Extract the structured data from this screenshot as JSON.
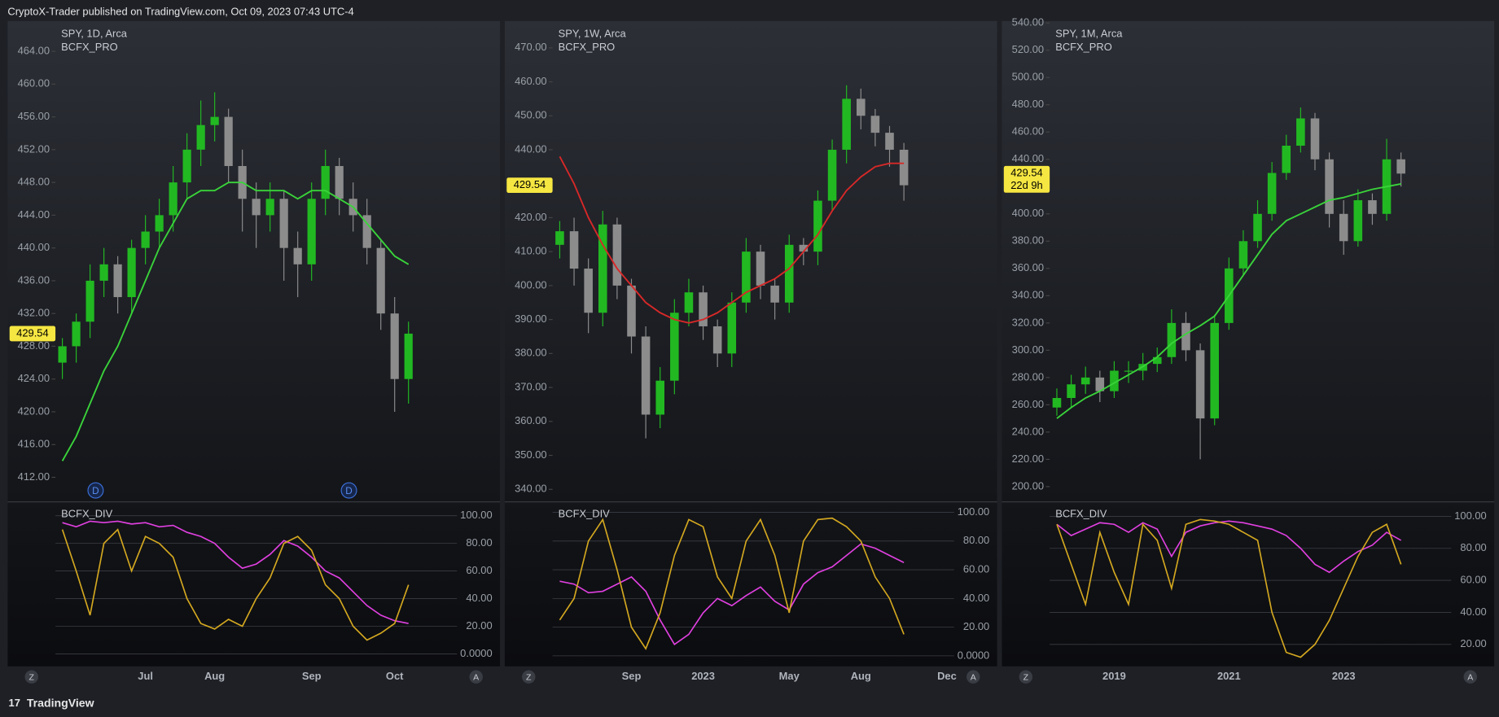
{
  "header": {
    "title": "CryptoX-Trader published on TradingView.com, Oct 09, 2023 07:43 UTC-4"
  },
  "footer": {
    "brand": "TradingView"
  },
  "chart_data": [
    {
      "type": "candlestick",
      "symbol": "SPY, 1D, Arca",
      "indicator": "BCFX_PRO",
      "categories": [
        null,
        null,
        null,
        null,
        null,
        null,
        "Jul",
        null,
        null,
        null,
        null,
        "Aug",
        null,
        null,
        null,
        null,
        null,
        null,
        "Sep",
        null,
        null,
        null,
        null,
        null,
        "Oct",
        null,
        null,
        null,
        null
      ],
      "open": [
        426,
        428,
        431,
        436,
        438,
        434,
        440,
        442,
        444,
        448,
        452,
        455,
        456,
        450,
        446,
        444,
        446,
        440,
        438,
        446,
        450,
        446,
        444,
        440,
        432,
        424,
        null,
        null,
        null
      ],
      "high": [
        429,
        432,
        438,
        440,
        439,
        441,
        444,
        446,
        450,
        454,
        458,
        459,
        457,
        452,
        448,
        448,
        447,
        442,
        448,
        452,
        451,
        448,
        446,
        441,
        434,
        431,
        null,
        null,
        null
      ],
      "low": [
        424,
        426,
        429,
        434,
        432,
        432,
        438,
        440,
        442,
        446,
        450,
        453,
        448,
        442,
        440,
        442,
        436,
        434,
        436,
        444,
        444,
        442,
        438,
        430,
        420,
        421,
        null,
        null,
        null
      ],
      "close": [
        428,
        431,
        436,
        438,
        434,
        440,
        442,
        444,
        448,
        452,
        455,
        456,
        450,
        446,
        444,
        446,
        440,
        438,
        446,
        450,
        446,
        444,
        440,
        432,
        424,
        429.54,
        null,
        null,
        null
      ],
      "up_color": "#22b822",
      "down_color": "#8c8c8c",
      "ma": {
        "color": "#3ad33a",
        "values": [
          414,
          417,
          421,
          425,
          428,
          432,
          436,
          440,
          443,
          446,
          447,
          447,
          448,
          448,
          447,
          447,
          447,
          446,
          447,
          447,
          446,
          445,
          443,
          441,
          439,
          438,
          null,
          null,
          null
        ]
      },
      "last_price": 429.54,
      "ylim": [
        409,
        467.7
      ],
      "yticks": [
        {
          "value": 412,
          "label": "412.00"
        },
        {
          "value": 416,
          "label": "416.00"
        },
        {
          "value": 420,
          "label": "420.00"
        },
        {
          "value": 424,
          "label": "424.00"
        },
        {
          "value": 428,
          "label": "428.00"
        },
        {
          "value": 432,
          "label": "432.00"
        },
        {
          "value": 436,
          "label": "436.00"
        },
        {
          "value": 440,
          "label": "440.00"
        },
        {
          "value": 444,
          "label": "444.00"
        },
        {
          "value": 448,
          "label": "448.00"
        },
        {
          "value": 452,
          "label": "452.00"
        },
        {
          "value": 456,
          "label": "456.00"
        },
        {
          "value": 460,
          "label": "460.00"
        },
        {
          "value": 464,
          "label": "464.00"
        }
      ],
      "events": [
        "D",
        "D"
      ],
      "scale_buttons": [
        "Z",
        "A"
      ],
      "oscillator": {
        "title": "BCFX_DIV",
        "ylim": [
          -9,
          110
        ],
        "yticks": [
          {
            "value": 0,
            "label": "0.0000"
          },
          {
            "value": 20,
            "label": "20.00"
          },
          {
            "value": 40,
            "label": "40.00"
          },
          {
            "value": 60,
            "label": "60.00"
          },
          {
            "value": 80,
            "label": "80.00"
          },
          {
            "value": 100,
            "label": "100.00"
          }
        ],
        "series": [
          {
            "color": "#e040e0",
            "values": [
              95,
              92,
              96,
              95,
              96,
              94,
              95,
              92,
              93,
              88,
              85,
              80,
              70,
              62,
              65,
              72,
              82,
              78,
              70,
              60,
              55,
              45,
              35,
              28,
              24,
              22,
              null,
              null,
              null
            ]
          },
          {
            "color": "#d4a820",
            "values": [
              90,
              60,
              28,
              80,
              90,
              60,
              85,
              80,
              70,
              40,
              22,
              18,
              25,
              20,
              40,
              55,
              80,
              85,
              75,
              50,
              40,
              20,
              10,
              15,
              22,
              50,
              null,
              null,
              null
            ]
          }
        ]
      }
    },
    {
      "type": "candlestick",
      "symbol": "SPY, 1W, Arca",
      "indicator": "BCFX_PRO",
      "categories": [
        null,
        null,
        null,
        null,
        null,
        "Sep",
        null,
        null,
        null,
        null,
        "2023",
        null,
        null,
        null,
        null,
        null,
        "May",
        null,
        null,
        null,
        null,
        "Aug",
        null,
        null,
        null,
        null,
        null,
        "Dec"
      ],
      "open": [
        412,
        416,
        405,
        392,
        418,
        400,
        385,
        362,
        372,
        392,
        398,
        388,
        380,
        395,
        410,
        400,
        395,
        412,
        410,
        425,
        440,
        455,
        450,
        445,
        440,
        null,
        null,
        null
      ],
      "high": [
        419,
        420,
        408,
        422,
        420,
        402,
        388,
        376,
        396,
        402,
        400,
        390,
        398,
        414,
        412,
        402,
        415,
        414,
        428,
        443,
        459,
        458,
        452,
        447,
        442,
        null,
        null,
        null
      ],
      "low": [
        408,
        400,
        386,
        388,
        396,
        380,
        355,
        358,
        368,
        388,
        384,
        376,
        376,
        392,
        396,
        390,
        392,
        406,
        406,
        422,
        436,
        446,
        441,
        435,
        425,
        null,
        null,
        null
      ],
      "close": [
        416,
        405,
        392,
        418,
        400,
        385,
        362,
        372,
        392,
        398,
        388,
        380,
        395,
        410,
        400,
        395,
        412,
        410,
        425,
        440,
        455,
        450,
        445,
        440,
        429.54,
        null,
        null,
        null
      ],
      "up_color": "#22b822",
      "down_color": "#8c8c8c",
      "ma": {
        "color": "#d82828",
        "values": [
          438,
          430,
          420,
          412,
          405,
          400,
          395,
          392,
          390,
          389,
          390,
          392,
          395,
          398,
          400,
          402,
          405,
          410,
          415,
          422,
          428,
          432,
          435,
          436,
          436,
          null,
          null,
          null
        ]
      },
      "last_price": 429.54,
      "ylim": [
        336.3,
        477.9
      ],
      "yticks": [
        {
          "value": 340,
          "label": "340.00"
        },
        {
          "value": 350,
          "label": "350.00"
        },
        {
          "value": 360,
          "label": "360.00"
        },
        {
          "value": 370,
          "label": "370.00"
        },
        {
          "value": 380,
          "label": "380.00"
        },
        {
          "value": 390,
          "label": "390.00"
        },
        {
          "value": 400,
          "label": "400.00"
        },
        {
          "value": 410,
          "label": "410.00"
        },
        {
          "value": 420,
          "label": "420.00"
        },
        {
          "value": 430,
          "label": "430.00"
        },
        {
          "value": 440,
          "label": "440.00"
        },
        {
          "value": 450,
          "label": "450.00"
        },
        {
          "value": 460,
          "label": "460.00"
        },
        {
          "value": 470,
          "label": "470.00"
        }
      ],
      "scale_buttons": [
        "Z",
        "A"
      ],
      "oscillator": {
        "title": "BCFX_DIV",
        "ylim": [
          -7.3,
          107.3
        ],
        "yticks": [
          {
            "value": 0,
            "label": "0.0000"
          },
          {
            "value": 20,
            "label": "20.00"
          },
          {
            "value": 40,
            "label": "40.00"
          },
          {
            "value": 60,
            "label": "60.00"
          },
          {
            "value": 80,
            "label": "80.00"
          },
          {
            "value": 100,
            "label": "100.00"
          }
        ],
        "series": [
          {
            "color": "#e040e0",
            "values": [
              52,
              50,
              44,
              45,
              50,
              55,
              45,
              25,
              8,
              15,
              30,
              40,
              35,
              42,
              48,
              38,
              32,
              50,
              58,
              62,
              70,
              78,
              75,
              70,
              65,
              null,
              null,
              null
            ]
          },
          {
            "color": "#d4a820",
            "values": [
              25,
              40,
              80,
              95,
              60,
              20,
              5,
              30,
              70,
              95,
              90,
              55,
              40,
              80,
              95,
              70,
              30,
              80,
              95,
              96,
              90,
              80,
              55,
              40,
              15,
              null,
              null,
              null
            ]
          }
        ]
      }
    },
    {
      "type": "candlestick",
      "symbol": "SPY, 1M, Arca",
      "indicator": "BCFX_PRO",
      "categories": [
        null,
        null,
        null,
        null,
        "2019",
        null,
        null,
        null,
        null,
        null,
        null,
        null,
        "2021",
        null,
        null,
        null,
        null,
        null,
        null,
        null,
        "2023",
        null,
        null,
        null,
        null,
        null,
        null,
        null
      ],
      "open": [
        258,
        265,
        275,
        280,
        270,
        285,
        285,
        290,
        295,
        320,
        300,
        250,
        320,
        360,
        380,
        400,
        430,
        450,
        470,
        440,
        400,
        380,
        410,
        400,
        440,
        null,
        null,
        null
      ],
      "high": [
        272,
        282,
        288,
        285,
        292,
        292,
        298,
        302,
        330,
        328,
        305,
        326,
        368,
        388,
        410,
        438,
        458,
        478,
        474,
        445,
        410,
        418,
        415,
        455,
        445,
        null,
        null,
        null
      ],
      "low": [
        252,
        258,
        268,
        262,
        265,
        276,
        278,
        284,
        290,
        292,
        220,
        245,
        315,
        355,
        375,
        395,
        425,
        445,
        432,
        390,
        370,
        376,
        392,
        395,
        420,
        null,
        null,
        null
      ],
      "close": [
        265,
        275,
        280,
        270,
        285,
        285,
        290,
        295,
        320,
        300,
        250,
        320,
        360,
        380,
        400,
        430,
        450,
        470,
        440,
        400,
        380,
        410,
        400,
        440,
        429.54,
        null,
        null,
        null
      ],
      "up_color": "#22b822",
      "down_color": "#8c8c8c",
      "ma": {
        "color": "#3ad33a",
        "values": [
          250,
          258,
          265,
          270,
          276,
          282,
          288,
          295,
          305,
          312,
          318,
          325,
          340,
          355,
          370,
          385,
          395,
          400,
          405,
          410,
          412,
          415,
          418,
          420,
          422,
          null,
          null,
          null
        ]
      },
      "last_price": 429.54,
      "countdown": "22d 9h",
      "ylim": [
        188.8,
        541.4
      ],
      "yticks": [
        {
          "value": 200,
          "label": "200.00"
        },
        {
          "value": 220,
          "label": "220.00"
        },
        {
          "value": 240,
          "label": "240.00"
        },
        {
          "value": 260,
          "label": "260.00"
        },
        {
          "value": 280,
          "label": "280.00"
        },
        {
          "value": 300,
          "label": "300.00"
        },
        {
          "value": 320,
          "label": "320.00"
        },
        {
          "value": 340,
          "label": "340.00"
        },
        {
          "value": 360,
          "label": "360.00"
        },
        {
          "value": 380,
          "label": "380.00"
        },
        {
          "value": 400,
          "label": "400.00"
        },
        {
          "value": 420,
          "label": "420.00"
        },
        {
          "value": 440,
          "label": "440.00"
        },
        {
          "value": 460,
          "label": "460.00"
        },
        {
          "value": 480,
          "label": "480.00"
        },
        {
          "value": 500,
          "label": "500.00"
        },
        {
          "value": 520,
          "label": "520.00"
        },
        {
          "value": 540,
          "label": "540.00"
        }
      ],
      "scale_buttons": [
        "Z",
        "A"
      ],
      "oscillator": {
        "title": "BCFX_DIV",
        "ylim": [
          6.3,
          109
        ],
        "yticks": [
          {
            "value": 20,
            "label": "20.00"
          },
          {
            "value": 40,
            "label": "40.00"
          },
          {
            "value": 60,
            "label": "60.00"
          },
          {
            "value": 80,
            "label": "80.00"
          },
          {
            "value": 100,
            "label": "100.00"
          }
        ],
        "series": [
          {
            "color": "#e040e0",
            "values": [
              95,
              88,
              92,
              96,
              95,
              90,
              96,
              92,
              75,
              90,
              94,
              96,
              97,
              96,
              94,
              92,
              88,
              80,
              70,
              65,
              72,
              78,
              82,
              90,
              85,
              null,
              null,
              null
            ]
          },
          {
            "color": "#d4a820",
            "values": [
              95,
              70,
              45,
              90,
              65,
              45,
              95,
              85,
              55,
              95,
              98,
              97,
              95,
              90,
              85,
              40,
              15,
              12,
              20,
              35,
              55,
              75,
              90,
              95,
              70,
              null,
              null,
              null
            ]
          }
        ]
      }
    }
  ]
}
